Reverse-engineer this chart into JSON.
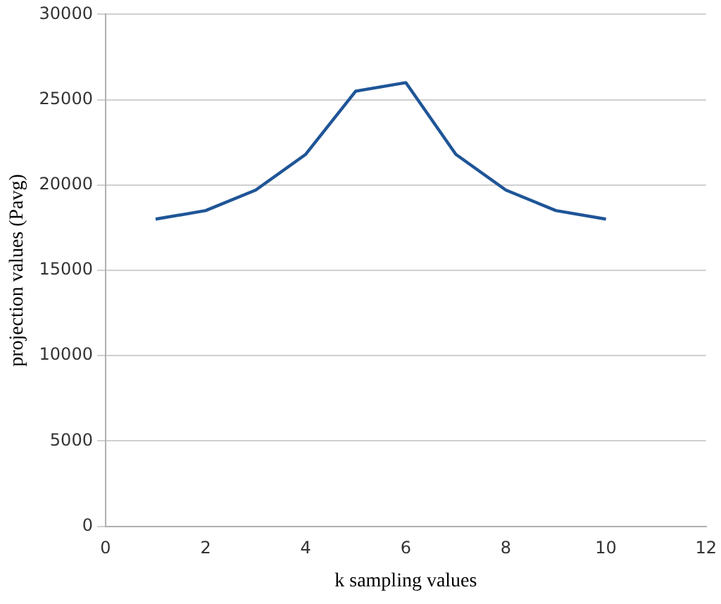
{
  "chart_data": {
    "type": "line",
    "xlabel": "k sampling values",
    "ylabel": "projection values (Pavg)",
    "x": [
      1,
      2,
      3,
      4,
      5,
      6,
      7,
      8,
      9,
      10
    ],
    "series": [
      {
        "color": "#1f5597",
        "values": [
          18000,
          18500,
          19700,
          21800,
          25500,
          26000,
          21800,
          19700,
          18500,
          18000
        ]
      }
    ],
    "xlim": [
      0,
      12
    ],
    "xticks": [
      0,
      2,
      4,
      6,
      8,
      10,
      12
    ],
    "ylim": [
      0,
      30000
    ],
    "yticks": [
      0,
      5000,
      10000,
      15000,
      20000,
      25000,
      30000
    ],
    "grid": "y",
    "marker": "none",
    "line_style": "solid",
    "legend": false
  }
}
